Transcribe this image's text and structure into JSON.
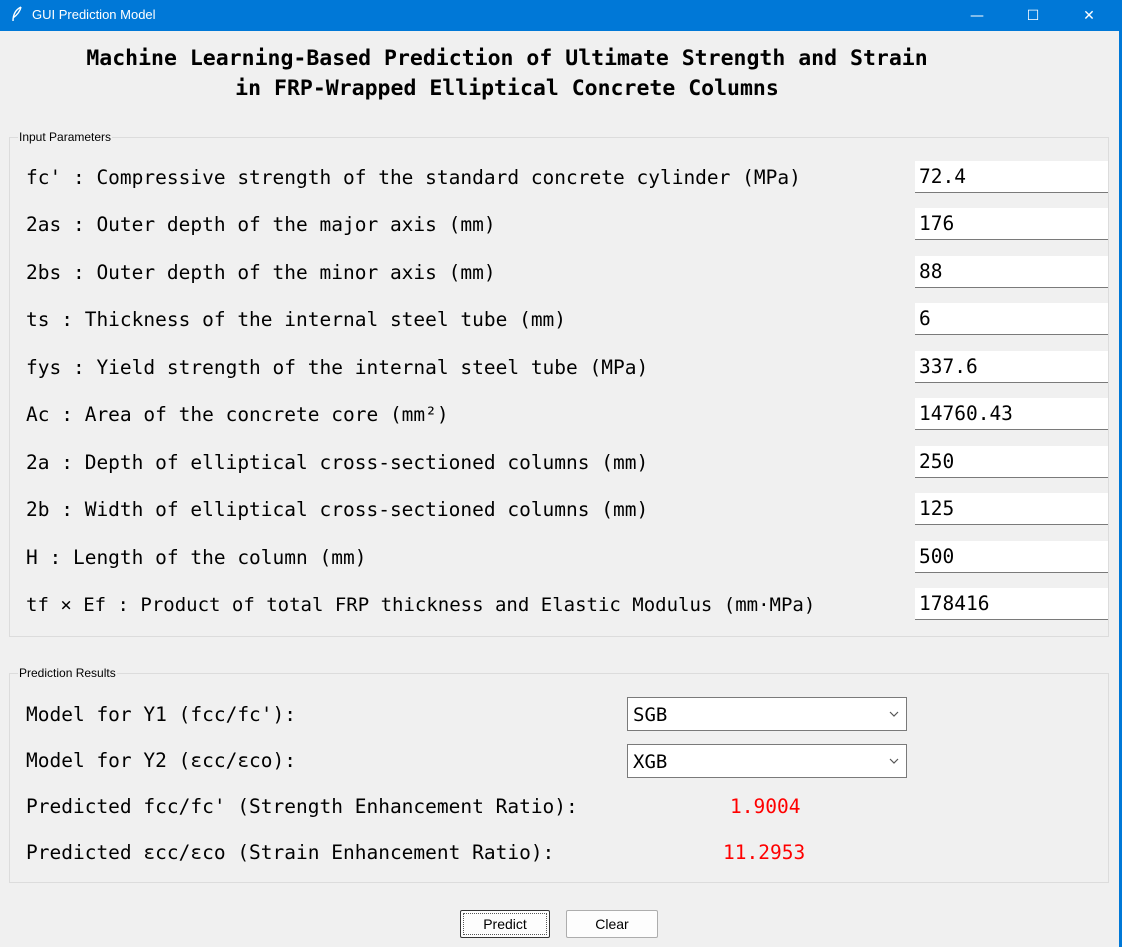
{
  "window": {
    "title": "GUI Prediction Model",
    "icon": "feather-icon",
    "minimize_glyph": "—",
    "maximize_glyph": "☐",
    "close_glyph": "✕"
  },
  "heading": {
    "line1": "Machine Learning-Based Prediction of Ultimate Strength and Strain",
    "line2": "in FRP-Wrapped Elliptical Concrete Columns"
  },
  "inputs": {
    "legend": "Input Parameters",
    "params": [
      {
        "label": "fc' : Compressive strength of the standard concrete cylinder (MPa)",
        "value": "72.4"
      },
      {
        "label": "2as : Outer depth of the major axis (mm)",
        "value": "176"
      },
      {
        "label": "2bs : Outer depth of the minor axis (mm)",
        "value": "88"
      },
      {
        "label": "ts : Thickness of the internal steel tube (mm)",
        "value": "6"
      },
      {
        "label": "fys : Yield strength of the internal steel tube (MPa)",
        "value": "337.6"
      },
      {
        "label": "Ac : Area of the concrete core (mm²)",
        "value": "14760.43"
      },
      {
        "label": "2a : Depth of elliptical cross-sectioned columns (mm)",
        "value": "250"
      },
      {
        "label": "2b : Width of elliptical cross-sectioned columns (mm)",
        "value": "125"
      },
      {
        "label": "H : Length of the column (mm)",
        "value": "500"
      },
      {
        "label": "tf × Ef : Product of total FRP thickness and Elastic Modulus (mm·MPa)",
        "value": "178416"
      }
    ]
  },
  "results": {
    "legend": "Prediction Results",
    "model_y1_label": "Model for Y1 (fcc/fc'):",
    "model_y1_value": "SGB",
    "model_y2_label": "Model for Y2 (εcc/εco):",
    "model_y2_value": "XGB",
    "strength_label": "Predicted fcc/fc' (Strength Enhancement Ratio):",
    "strength_value": "1.9004",
    "strain_label": "Predicted εcc/εco (Strain Enhancement Ratio):",
    "strain_value": "11.2953",
    "value_color": "#ff0000"
  },
  "buttons": {
    "predict": "Predict",
    "clear": "Clear"
  }
}
